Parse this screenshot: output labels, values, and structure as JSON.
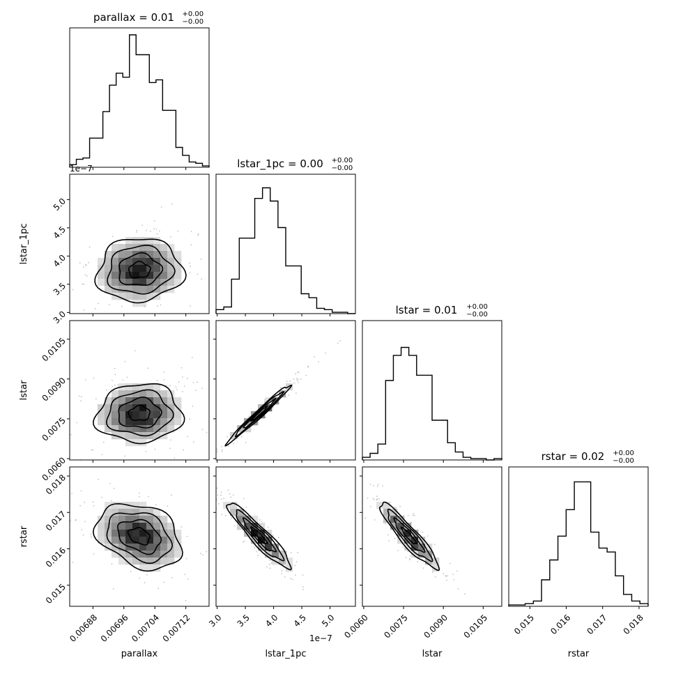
{
  "chart_data": {
    "type": "corner",
    "parameters": [
      {
        "name": "parallax",
        "title": "parallax = 0.01",
        "title_sup": "+0.00",
        "title_sub": "−0.00",
        "label": "parallax",
        "range": [
          0.00682,
          0.00718
        ],
        "ticks": [
          0.00688,
          0.00696,
          0.00704,
          0.00712
        ],
        "tick_labels": [
          "0.00688",
          "0.00696",
          "0.00704",
          "0.00712"
        ],
        "offset": "",
        "hist": [
          0.02,
          0.06,
          0.07,
          0.22,
          0.22,
          0.42,
          0.62,
          0.71,
          0.68,
          1.0,
          0.85,
          0.85,
          0.64,
          0.66,
          0.43,
          0.43,
          0.15,
          0.09,
          0.04,
          0.03,
          0.01
        ],
        "mean": 0.007,
        "sigma": 5.5e-05
      },
      {
        "name": "lstar_1pc",
        "title": "lstar_1pc = 0.00",
        "title_sup": "+0.00",
        "title_sub": "−0.00",
        "label": "lstar_1pc",
        "range": [
          2.98,
          5.45
        ],
        "ticks": [
          3.0,
          3.5,
          4.0,
          4.5,
          5.0
        ],
        "tick_labels": [
          "3.0",
          "3.5",
          "4.0",
          "4.5",
          "5.0"
        ],
        "offset": "1e−7",
        "hist": [
          0.03,
          0.05,
          0.26,
          0.57,
          0.57,
          0.87,
          0.95,
          0.85,
          0.65,
          0.36,
          0.36,
          0.15,
          0.12,
          0.04,
          0.03,
          0.01,
          0.01,
          0.0
        ],
        "mean": 3.75,
        "sigma": 0.28
      },
      {
        "name": "lstar",
        "title": "lstar = 0.01",
        "title_sup": "+0.00",
        "title_sub": "−0.00",
        "label": "lstar",
        "range": [
          0.00595,
          0.0112
        ],
        "ticks": [
          0.006,
          0.0075,
          0.009,
          0.0105
        ],
        "tick_labels": [
          "0.0060",
          "0.0075",
          "0.0090",
          "0.0105"
        ],
        "offset": "",
        "hist": [
          0.02,
          0.05,
          0.12,
          0.6,
          0.79,
          0.85,
          0.79,
          0.64,
          0.64,
          0.3,
          0.3,
          0.13,
          0.06,
          0.02,
          0.01,
          0.01,
          0.0,
          0.01
        ],
        "mean": 0.0077,
        "sigma": 0.00055
      },
      {
        "name": "rstar",
        "title": "rstar = 0.02",
        "title_sup": "+0.00",
        "title_sub": "−0.00",
        "label": "rstar",
        "range": [
          0.01442,
          0.01825
        ],
        "ticks": [
          0.015,
          0.016,
          0.017,
          0.018
        ],
        "tick_labels": [
          "0.015",
          "0.016",
          "0.017",
          "0.018"
        ],
        "offset": "",
        "hist": [
          0.01,
          0.01,
          0.02,
          0.04,
          0.2,
          0.35,
          0.53,
          0.73,
          0.94,
          0.94,
          0.56,
          0.44,
          0.41,
          0.23,
          0.09,
          0.04,
          0.02
        ],
        "mean": 0.01635,
        "sigma": 0.00045
      }
    ],
    "correlations": [
      {
        "x": "parallax",
        "y": "lstar_1pc",
        "rho": 0.05
      },
      {
        "x": "parallax",
        "y": "lstar",
        "rho": 0.05
      },
      {
        "x": "parallax",
        "y": "rstar",
        "rho": -0.3
      },
      {
        "x": "lstar_1pc",
        "y": "lstar",
        "rho": 0.985
      },
      {
        "x": "lstar_1pc",
        "y": "rstar",
        "rho": -0.93
      },
      {
        "x": "lstar",
        "y": "rstar",
        "rho": -0.92
      }
    ],
    "contour_levels_sigma": [
      0.5,
      1.0,
      1.5,
      2.0
    ],
    "grid": false
  }
}
